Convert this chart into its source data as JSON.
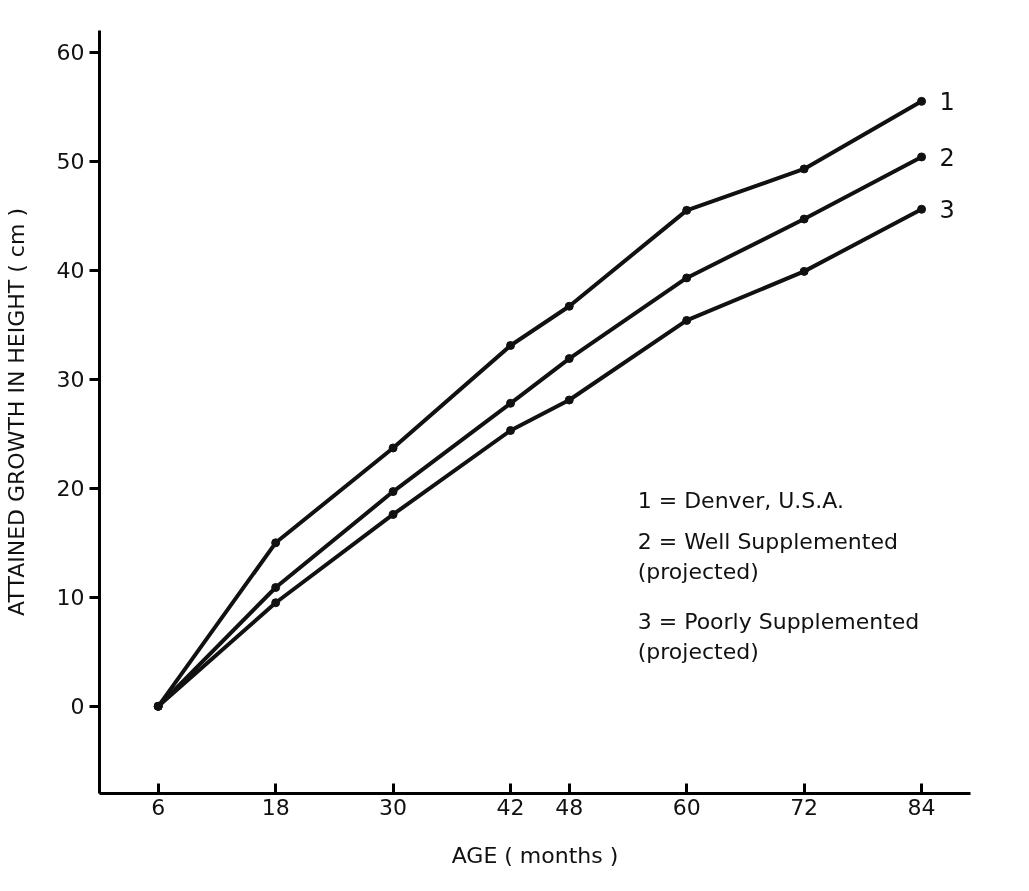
{
  "chart_data": {
    "type": "line",
    "xlabel": "AGE ( months )",
    "ylabel": "ATTAINED GROWTH IN HEIGHT ( cm )",
    "x": [
      6,
      18,
      30,
      42,
      48,
      60,
      72,
      84
    ],
    "series": [
      {
        "name": "1",
        "color": "#111111",
        "values": [
          0,
          15,
          23.7,
          33.1,
          36.7,
          45.5,
          49.3,
          55.5
        ]
      },
      {
        "name": "2",
        "color": "#111111",
        "values": [
          0,
          10.9,
          19.7,
          27.8,
          31.9,
          39.3,
          44.7,
          50.4
        ]
      },
      {
        "name": "3",
        "color": "#111111",
        "values": [
          0,
          9.5,
          17.6,
          25.3,
          28.1,
          35.4,
          39.9,
          45.6
        ]
      }
    ],
    "xlim": [
      0,
      89
    ],
    "ylim": [
      -8,
      62
    ],
    "xticks": [
      6,
      18,
      30,
      42,
      48,
      60,
      72,
      84
    ],
    "yticks": [
      0,
      10,
      20,
      30,
      40,
      50,
      60
    ],
    "marker": "circle",
    "line_style": "solid",
    "grid": false,
    "legend": false,
    "annotations": [
      "1 = Denver, U.S.A.",
      "2 = Well Supplemented\n      (projected)",
      "3 = Poorly Supplemented\n      (projected)"
    ]
  }
}
